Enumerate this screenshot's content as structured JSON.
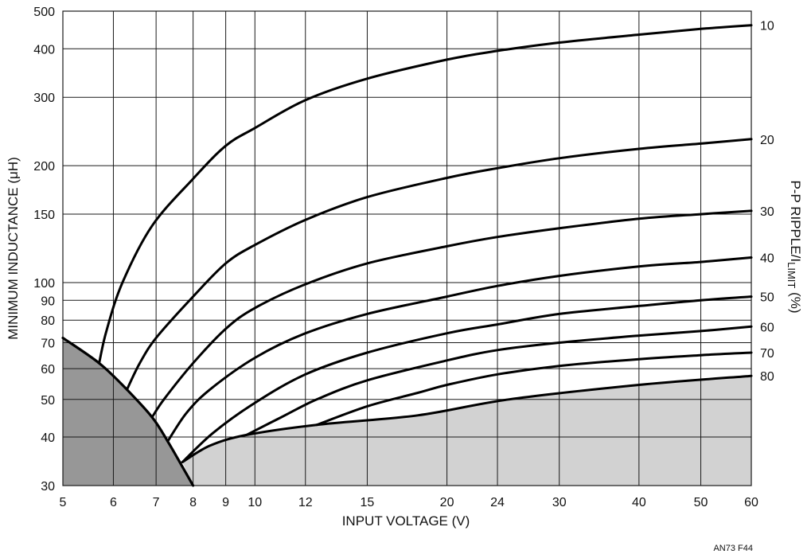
{
  "chart_data": {
    "type": "line",
    "xlabel": "INPUT VOLTAGE (V)",
    "ylabel": "MINIMUM INDUCTANCE (μH)",
    "y2label_main": "P-P RIPPLE/I",
    "y2label_sub": "LIMIT",
    "y2label_end": " (%)",
    "x_scale": "log",
    "y_scale": "log",
    "xlim": [
      5,
      60
    ],
    "ylim": [
      30,
      500
    ],
    "x_ticks": [
      5,
      6,
      7,
      8,
      9,
      10,
      12,
      15,
      20,
      24,
      30,
      40,
      50,
      60
    ],
    "y_ticks": [
      30,
      40,
      50,
      60,
      70,
      80,
      90,
      100,
      150,
      200,
      300,
      400,
      500
    ],
    "grid": true,
    "footnote": "AN73 F44",
    "boundaries": {
      "dark_region": {
        "x": [
          5,
          5.7,
          6.3,
          6.9,
          7.3,
          7.7,
          8.0
        ],
        "y": [
          72,
          62,
          53,
          45,
          39,
          33.5,
          30
        ]
      },
      "light_region": {
        "x": [
          7.7,
          8.5,
          9.7,
          12.5,
          18,
          25,
          40,
          60
        ],
        "y": [
          34.5,
          38,
          40.5,
          43,
          45.5,
          50,
          54.5,
          57.5
        ]
      }
    },
    "series": [
      {
        "name": "10",
        "x": [
          5.7,
          5.85,
          6.2,
          6.9,
          8,
          9,
          10,
          12,
          15,
          20,
          24,
          30,
          40,
          50,
          60
        ],
        "y": [
          62,
          75,
          100,
          140,
          185,
          225,
          250,
          295,
          335,
          375,
          395,
          415,
          435,
          450,
          460
        ]
      },
      {
        "name": "20",
        "x": [
          6.3,
          6.6,
          7,
          8,
          9,
          10,
          12,
          15,
          20,
          24,
          30,
          40,
          50,
          60
        ],
        "y": [
          53,
          62,
          72,
          92,
          112,
          125,
          145,
          166,
          186,
          197,
          209,
          221,
          228,
          234
        ]
      },
      {
        "name": "30",
        "x": [
          6.9,
          7.2,
          8,
          9,
          10,
          12,
          15,
          20,
          24,
          30,
          40,
          50,
          60
        ],
        "y": [
          45,
          50,
          62,
          76,
          86,
          99,
          112,
          124,
          131,
          138,
          146,
          150,
          153
        ]
      },
      {
        "name": "40",
        "x": [
          7.3,
          7.8,
          8.5,
          10,
          12,
          15,
          20,
          24,
          30,
          40,
          50,
          60
        ],
        "y": [
          39,
          46,
          53,
          64,
          74,
          83,
          92,
          98,
          104,
          110,
          113,
          116
        ]
      },
      {
        "name": "50",
        "x": [
          7.7,
          8.6,
          10,
          12,
          15,
          20,
          24,
          30,
          40,
          50,
          60
        ],
        "y": [
          34.5,
          41,
          49,
          58,
          66,
          74,
          78,
          83,
          87,
          90,
          92
        ]
      },
      {
        "name": "60",
        "x": [
          9.7,
          11,
          12.5,
          15,
          20,
          24,
          30,
          40,
          50,
          60
        ],
        "y": [
          40.5,
          45,
          50,
          56,
          63,
          67,
          70,
          73,
          75,
          77
        ]
      },
      {
        "name": "70",
        "x": [
          12.5,
          15,
          18,
          20,
          24,
          30,
          40,
          50,
          60
        ],
        "y": [
          43,
          48,
          52,
          54.5,
          58,
          61,
          63.5,
          65,
          66
        ]
      },
      {
        "name": "80",
        "x": [
          7.7,
          8.5,
          9.7,
          12.5,
          18,
          25,
          40,
          60
        ],
        "y": [
          34.5,
          38,
          40.5,
          43,
          45.5,
          50,
          54.5,
          57.5
        ]
      }
    ],
    "right_labels": [
      {
        "text": "10",
        "y": 460
      },
      {
        "text": "20",
        "y": 234
      },
      {
        "text": "30",
        "y": 153
      },
      {
        "text": "40",
        "y": 116
      },
      {
        "text": "50",
        "y": 92
      },
      {
        "text": "60",
        "y": 77
      },
      {
        "text": "70",
        "y": 66
      },
      {
        "text": "80",
        "y": 57.5
      }
    ],
    "colors": {
      "dark_region": "#979797",
      "light_region": "#d2d2d2",
      "line": "#000000",
      "grid": "#1a1a1a"
    }
  }
}
